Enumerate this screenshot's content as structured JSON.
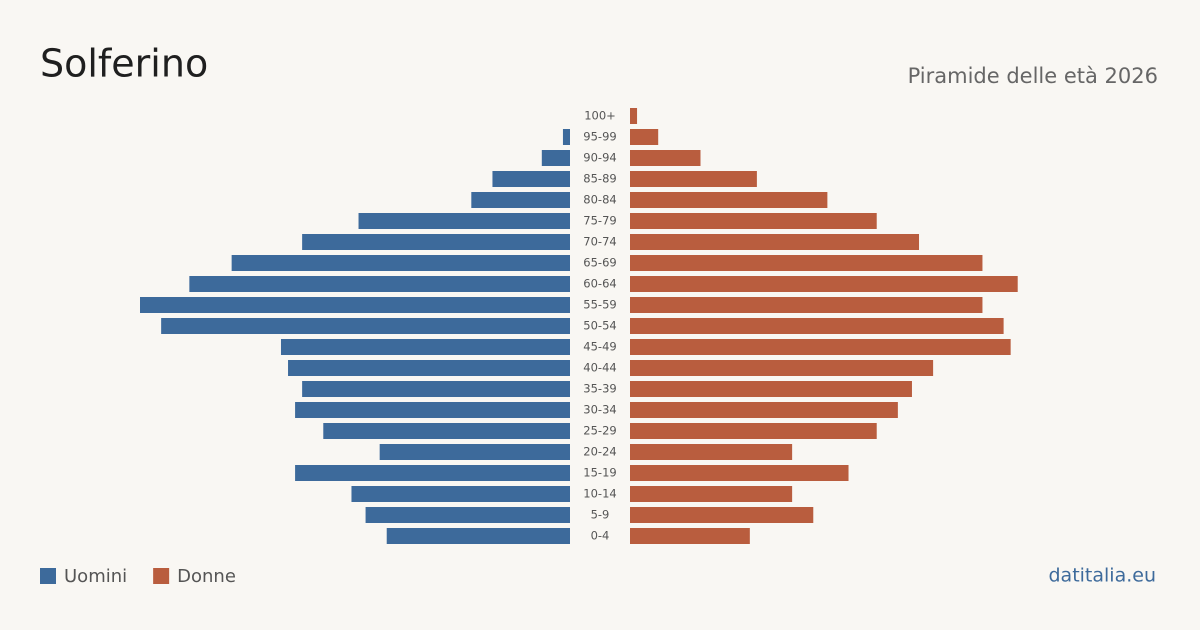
{
  "chart_data": {
    "type": "pyramid",
    "title": "Solferino",
    "subtitle": "Piramide delle età 2026",
    "site": "datitalia.eu",
    "categories": [
      "100+",
      "95-99",
      "90-94",
      "85-89",
      "80-84",
      "75-79",
      "70-74",
      "65-69",
      "60-64",
      "55-59",
      "50-54",
      "45-49",
      "40-44",
      "35-39",
      "30-34",
      "25-29",
      "20-24",
      "15-19",
      "10-14",
      "5-9",
      "0-4"
    ],
    "series": [
      {
        "name": "Uomini",
        "color": "#3d6a9b",
        "values": [
          0,
          1,
          4,
          11,
          14,
          30,
          38,
          48,
          54,
          61,
          58,
          41,
          40,
          38,
          39,
          35,
          27,
          39,
          31,
          29,
          26
        ]
      },
      {
        "name": "Donne",
        "color": "#b95d3e",
        "values": [
          1,
          4,
          10,
          18,
          28,
          35,
          41,
          50,
          55,
          50,
          53,
          54,
          43,
          40,
          38,
          35,
          23,
          31,
          23,
          26,
          17
        ]
      }
    ]
  }
}
